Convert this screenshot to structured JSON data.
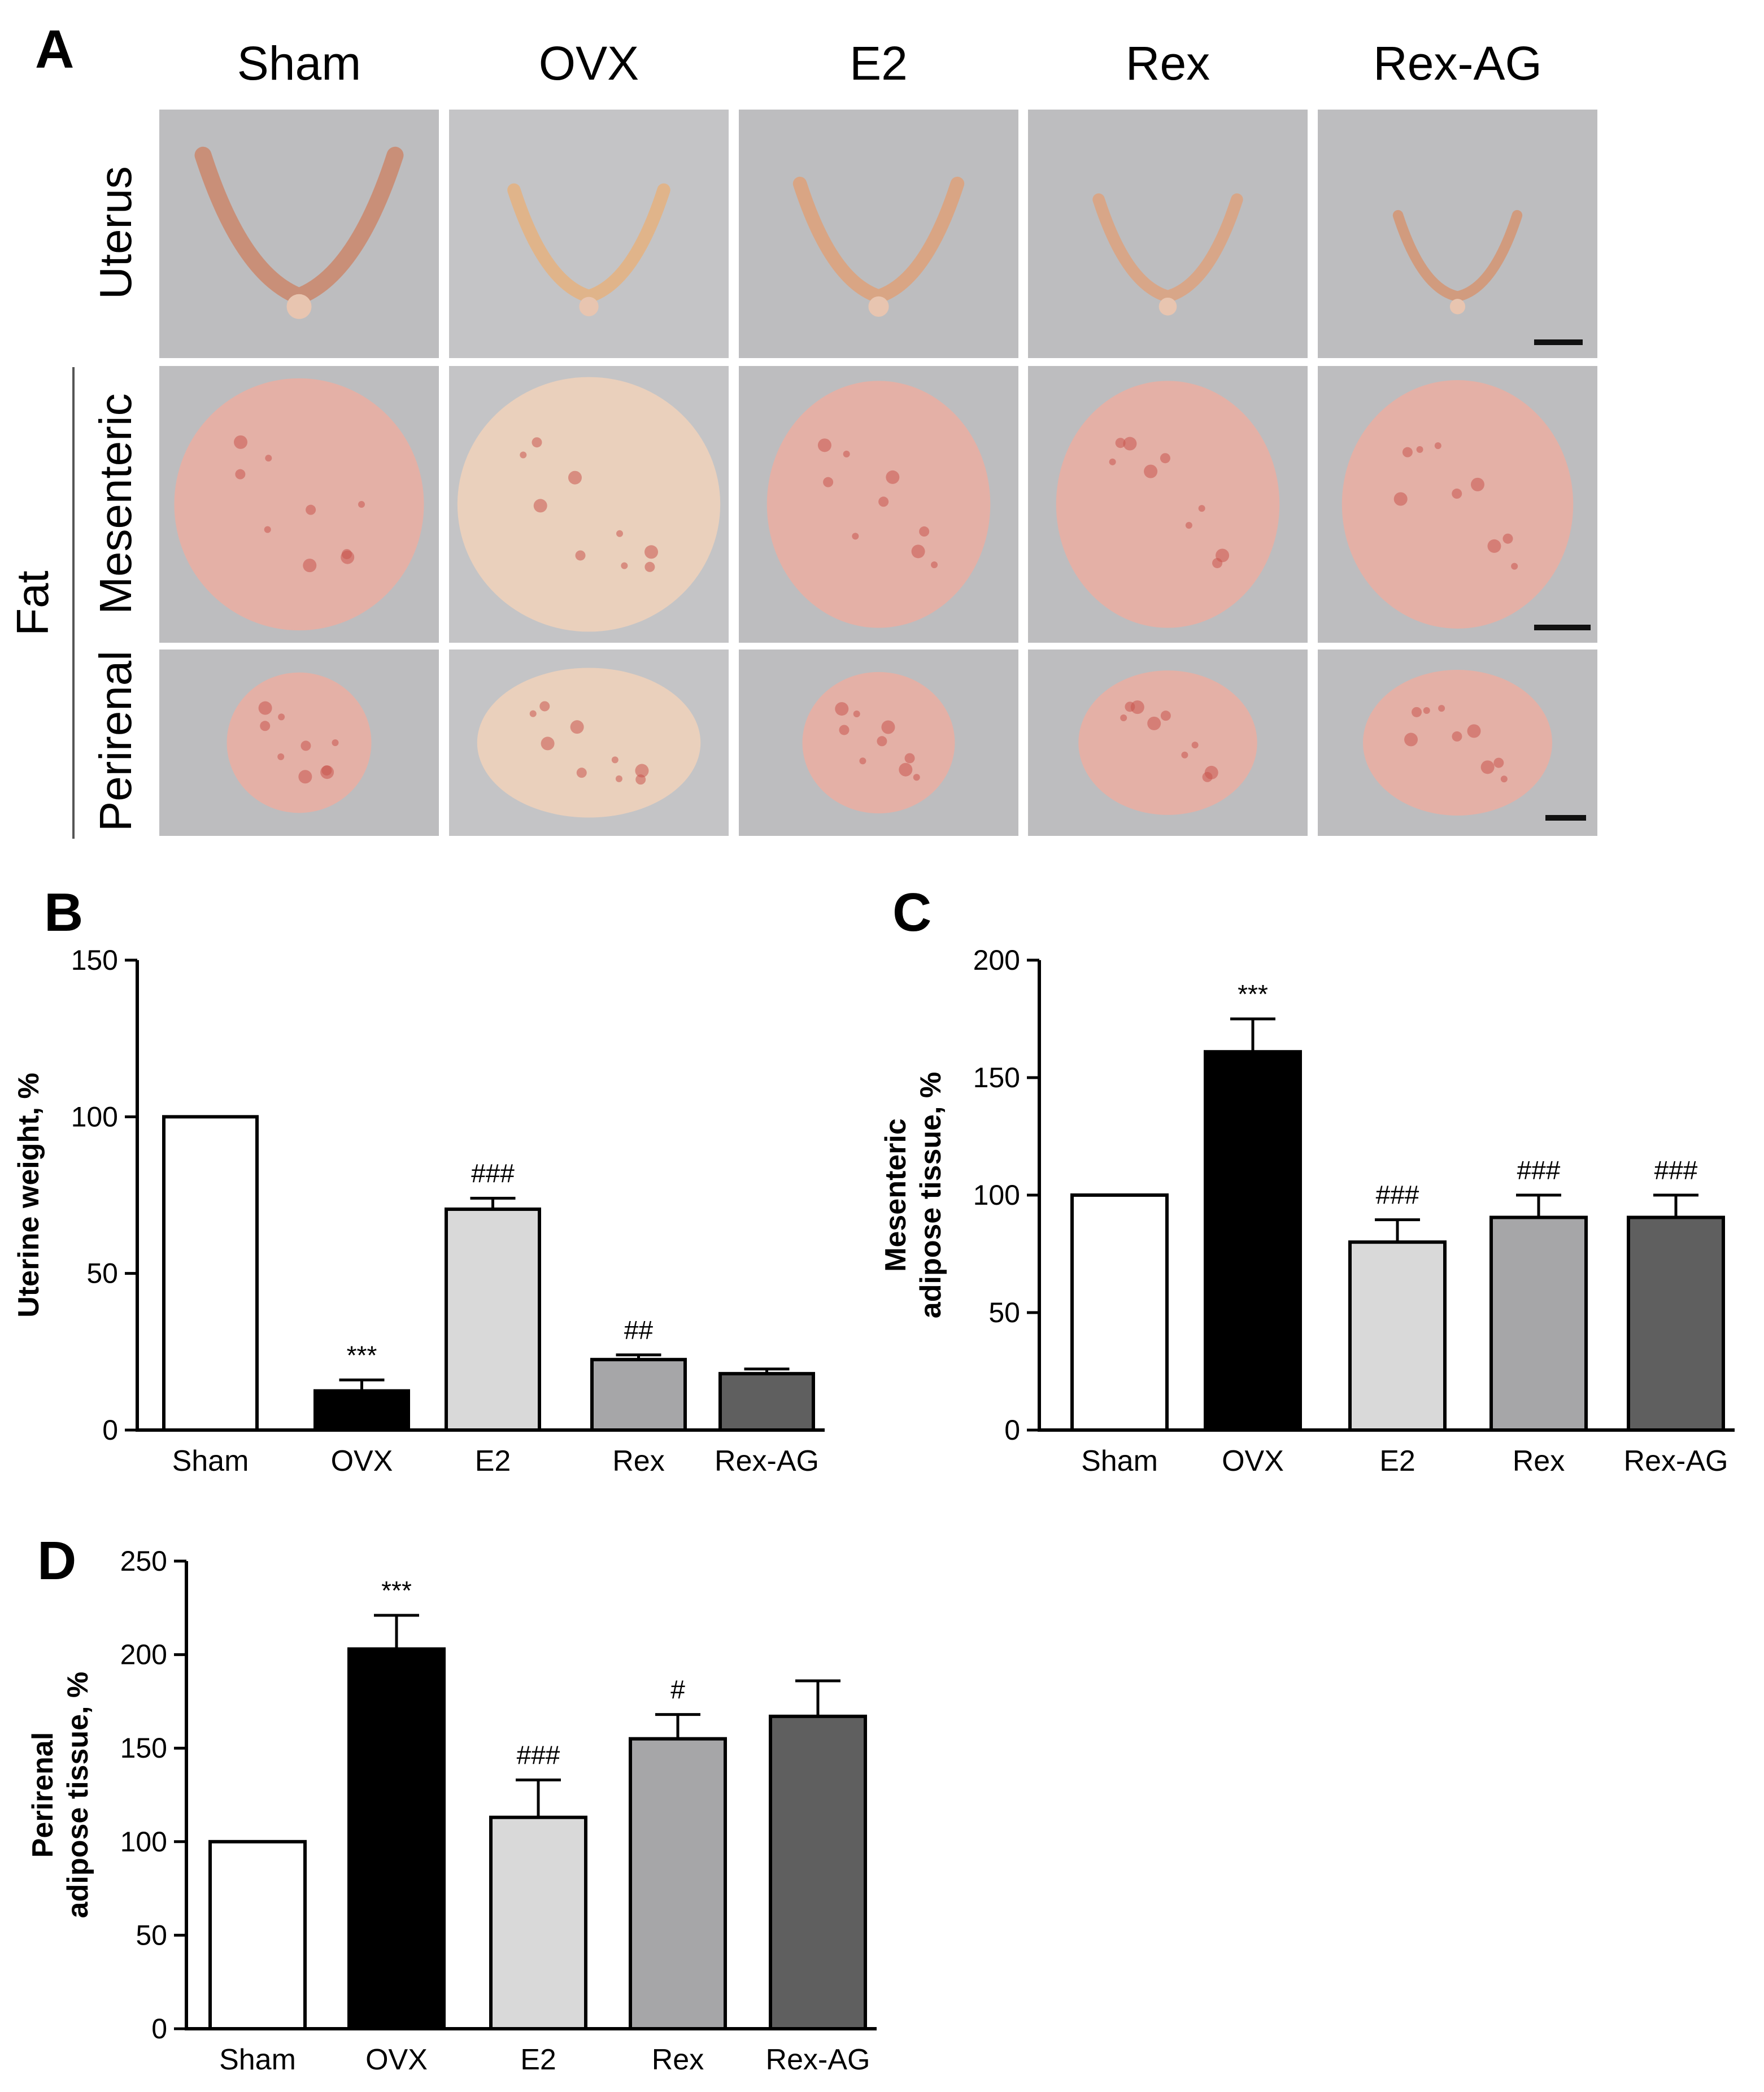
{
  "panelA": {
    "letter": "A",
    "columns": [
      "Sham",
      "OVX",
      "E2",
      "Rex",
      "Rex-AG"
    ],
    "rows": {
      "uterus": "Uterus",
      "fat": "Fat",
      "mesenteric": "Mesenteric",
      "perirenal": "Perirenal"
    }
  },
  "chart_data": [
    {
      "type": "bar",
      "panel": "B",
      "categories": [
        "Sham",
        "OVX",
        "E2",
        "Rex",
        "Rex-AG"
      ],
      "values": [
        100,
        12.5,
        70.5,
        22.5,
        18
      ],
      "errors": [
        0,
        3.5,
        3.5,
        1.5,
        1.5
      ],
      "annotations": [
        "",
        "***",
        "###",
        "##",
        ""
      ],
      "ylabel": "Uterine weight, %",
      "ylim": [
        0,
        150
      ],
      "yticks": [
        0,
        50,
        100,
        150
      ],
      "bar_colors": [
        "#ffffff",
        "#000000",
        "#d9d9d9",
        "#a6a6a8",
        "#5f5f5f"
      ]
    },
    {
      "type": "bar",
      "panel": "C",
      "categories": [
        "Sham",
        "OVX",
        "E2",
        "Rex",
        "Rex-AG"
      ],
      "values": [
        100,
        161,
        80,
        90.5,
        90.5
      ],
      "errors": [
        0,
        14,
        9.5,
        9.5,
        9.5
      ],
      "annotations": [
        "",
        "***",
        "###",
        "###",
        "###"
      ],
      "ylabel": [
        "Mesenteric",
        "adipose tissue, %"
      ],
      "ylim": [
        0,
        200
      ],
      "yticks": [
        0,
        50,
        100,
        150,
        200
      ],
      "bar_colors": [
        "#ffffff",
        "#000000",
        "#d9d9d9",
        "#a6a6a8",
        "#5f5f5f"
      ]
    },
    {
      "type": "bar",
      "panel": "D",
      "categories": [
        "Sham",
        "OVX",
        "E2",
        "Rex",
        "Rex-AG"
      ],
      "values": [
        100,
        203,
        113,
        155,
        167
      ],
      "errors": [
        0,
        18,
        20,
        13,
        19
      ],
      "annotations": [
        "",
        "***",
        "###",
        "#",
        ""
      ],
      "ylabel": [
        "Perirenal",
        "adipose tissue, %"
      ],
      "ylim": [
        0,
        250
      ],
      "yticks": [
        0,
        50,
        100,
        150,
        200,
        250
      ],
      "bar_colors": [
        "#ffffff",
        "#000000",
        "#d9d9d9",
        "#a6a6a8",
        "#5f5f5f"
      ]
    }
  ]
}
